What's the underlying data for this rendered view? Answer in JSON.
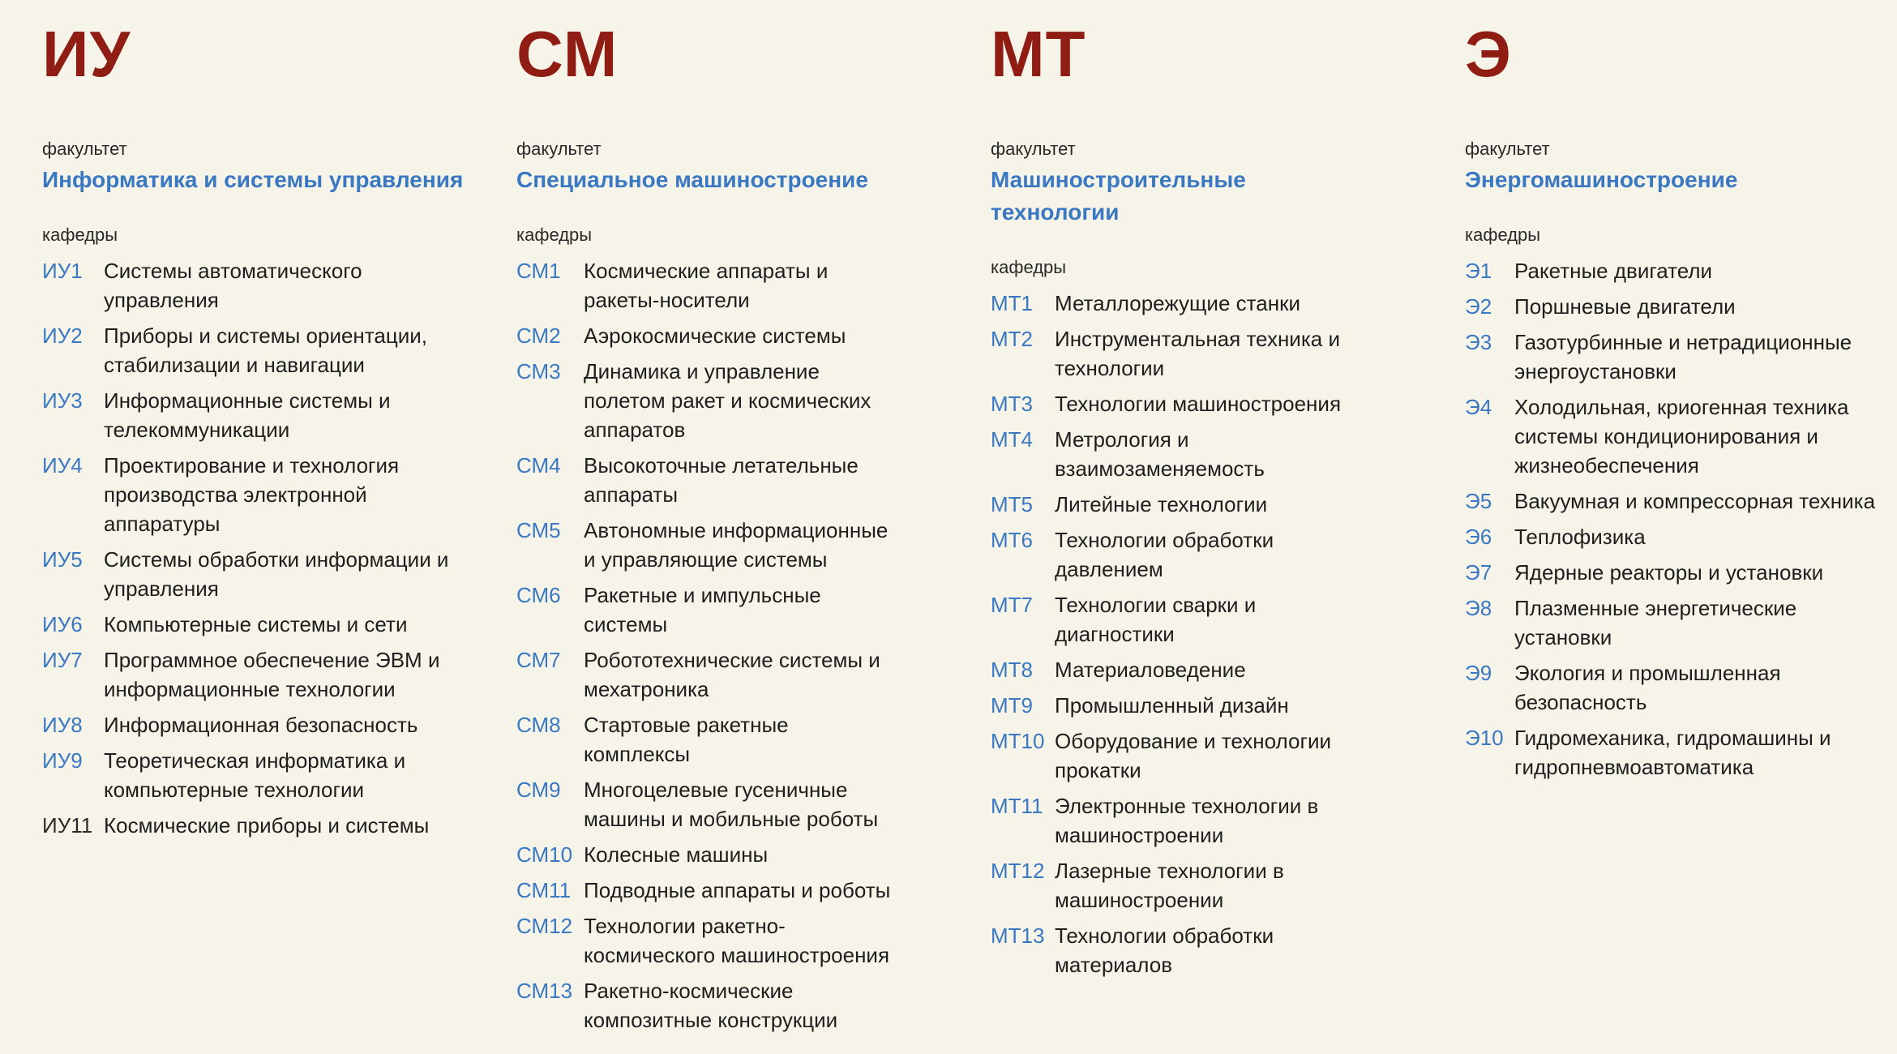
{
  "faculties": [
    {
      "code": "ИУ",
      "faculty_caption": "факультет",
      "name": "Информатика и системы управления",
      "departments_caption": "кафедры",
      "departments": [
        {
          "code": "ИУ1",
          "name": "Системы автоматического управления"
        },
        {
          "code": "ИУ2",
          "name": "Приборы и системы ориентации, стабилизации и навигации"
        },
        {
          "code": "ИУ3",
          "name": "Информационные системы и телекоммуникации"
        },
        {
          "code": "ИУ4",
          "name": "Проектирование и технология производства электронной аппаратуры"
        },
        {
          "code": "ИУ5",
          "name": "Системы обработки информации и управления"
        },
        {
          "code": "ИУ6",
          "name": "Компьютерные системы и сети"
        },
        {
          "code": "ИУ7",
          "name": "Программное обеспечение ЭВМ и информационные технологии"
        },
        {
          "code": "ИУ8",
          "name": "Информационная безопасность"
        },
        {
          "code": "ИУ9",
          "name": "Теоретическая информатика и компьютерные технологии"
        },
        {
          "code": "ИУ11",
          "name": "Космические приборы и системы"
        }
      ]
    },
    {
      "code": "СМ",
      "faculty_caption": "факультет",
      "name": "Специальное машиностроение",
      "departments_caption": "кафедры",
      "departments": [
        {
          "code": "СМ1",
          "name": "Космические аппараты и ракеты-носители"
        },
        {
          "code": "СМ2",
          "name": "Аэрокосмические системы"
        },
        {
          "code": "СМ3",
          "name": "Динамика и управление полетом ракет и космических аппаратов"
        },
        {
          "code": "СМ4",
          "name": "Высокоточные летательные аппараты"
        },
        {
          "code": "СМ5",
          "name": "Автономные информационные и управляющие системы"
        },
        {
          "code": "СМ6",
          "name": "Ракетные и импульсные системы"
        },
        {
          "code": "СМ7",
          "name": "Робототехнические системы и мехатроника"
        },
        {
          "code": "СМ8",
          "name": "Стартовые ракетные комплексы"
        },
        {
          "code": "СМ9",
          "name": "Многоцелевые гусеничные машины и мобильные роботы"
        },
        {
          "code": "СМ10",
          "name": "Колесные машины"
        },
        {
          "code": "СМ11",
          "name": "Подводные аппараты и роботы"
        },
        {
          "code": "СМ12",
          "name": "Технологии ракетно-космического машиностроения"
        },
        {
          "code": "СМ13",
          "name": "Ракетно-космические композитные конструкции"
        }
      ]
    },
    {
      "code": "МТ",
      "faculty_caption": "факультет",
      "name": "Машиностроительные технологии",
      "departments_caption": "кафедры",
      "departments": [
        {
          "code": "МТ1",
          "name": "Металлорежущие станки"
        },
        {
          "code": "МТ2",
          "name": "Инструментальная техника и технологии"
        },
        {
          "code": "МТ3",
          "name": "Технологии машиностроения"
        },
        {
          "code": "МТ4",
          "name": "Метрология и взаимозаменяемость"
        },
        {
          "code": "МТ5",
          "name": "Литейные технологии"
        },
        {
          "code": "МТ6",
          "name": "Технологии обработки давлением"
        },
        {
          "code": "МТ7",
          "name": "Технологии сварки и диагностики"
        },
        {
          "code": "МТ8",
          "name": "Материаловедение"
        },
        {
          "code": "МТ9",
          "name": "Промышленный дизайн"
        },
        {
          "code": "МТ10",
          "name": "Оборудование и технологии прокатки"
        },
        {
          "code": "МТ11",
          "name": "Электронные технологии в машиностроении"
        },
        {
          "code": "МТ12",
          "name": "Лазерные технологии в машиностроении"
        },
        {
          "code": "МТ13",
          "name": "Технологии обработки материалов"
        }
      ]
    },
    {
      "code": "Э",
      "faculty_caption": "факультет",
      "name": "Энергомашиностроение",
      "departments_caption": "кафедры",
      "departments": [
        {
          "code": "Э1",
          "name": "Ракетные двигатели"
        },
        {
          "code": "Э2",
          "name": "Поршневые двигатели"
        },
        {
          "code": "Э3",
          "name": "Газотурбинные и нетрадиционные энергоустановки"
        },
        {
          "code": "Э4",
          "name": "Холодильная, криогенная техника системы кондиционирования и жизнеобеспечения"
        },
        {
          "code": "Э5",
          "name": "Вакуумная и компрессорная техника"
        },
        {
          "code": "Э6",
          "name": "Теплофизика"
        },
        {
          "code": "Э7",
          "name": "Ядерные реакторы и установки"
        },
        {
          "code": "Э8",
          "name": "Плазменные энергетические установки"
        },
        {
          "code": "Э9",
          "name": "Экология и промышленная безопасность"
        },
        {
          "code": "Э10",
          "name": "Гидромеханика, гидромашины и гидропневмоавтоматика"
        }
      ]
    }
  ],
  "colors": {
    "background": "#f6f4e9",
    "faculty_code": "#8f1d14",
    "link_blue": "#3a78c2",
    "text": "#1e1e1e"
  }
}
